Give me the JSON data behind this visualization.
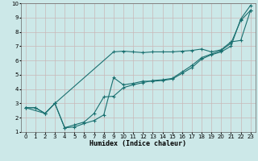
{
  "xlabel": "Humidex (Indice chaleur)",
  "xlim": [
    -0.5,
    23.5
  ],
  "ylim": [
    1,
    10
  ],
  "xticks": [
    0,
    1,
    2,
    3,
    4,
    5,
    6,
    7,
    8,
    9,
    10,
    11,
    12,
    13,
    14,
    15,
    16,
    17,
    18,
    19,
    20,
    21,
    22,
    23
  ],
  "yticks": [
    1,
    2,
    3,
    4,
    5,
    6,
    7,
    8,
    9,
    10
  ],
  "bg_color": "#cce8e8",
  "grid_color": "#c8b8b8",
  "line_color": "#1a7070",
  "lines": [
    {
      "x": [
        0,
        2,
        3,
        9,
        10,
        11,
        12,
        13,
        14,
        15,
        16,
        17,
        18,
        19,
        20,
        21,
        22,
        23
      ],
      "y": [
        2.7,
        2.3,
        3.0,
        6.6,
        6.65,
        6.6,
        6.55,
        6.6,
        6.6,
        6.6,
        6.65,
        6.7,
        6.8,
        6.6,
        6.75,
        7.3,
        7.4,
        9.5
      ]
    },
    {
      "x": [
        0,
        1,
        2,
        3,
        4,
        5,
        6,
        7,
        8,
        9,
        10,
        11,
        12,
        13,
        14,
        15,
        16,
        17,
        18,
        19,
        20,
        21,
        22,
        23
      ],
      "y": [
        2.7,
        2.7,
        2.3,
        3.0,
        1.3,
        1.35,
        1.6,
        1.8,
        2.2,
        4.8,
        4.3,
        4.4,
        4.55,
        4.55,
        4.6,
        4.7,
        5.1,
        5.5,
        6.1,
        6.4,
        6.6,
        7.0,
        8.9,
        9.85
      ]
    },
    {
      "x": [
        0,
        1,
        2,
        3,
        4,
        5,
        6,
        7,
        8,
        9,
        10,
        11,
        12,
        13,
        14,
        15,
        16,
        17,
        18,
        19,
        20,
        21,
        22,
        23
      ],
      "y": [
        2.7,
        2.7,
        2.3,
        3.0,
        1.3,
        1.5,
        1.7,
        2.3,
        3.45,
        3.5,
        4.1,
        4.3,
        4.45,
        4.6,
        4.65,
        4.75,
        5.2,
        5.65,
        6.2,
        6.45,
        6.7,
        7.2,
        8.8,
        9.5
      ]
    }
  ]
}
